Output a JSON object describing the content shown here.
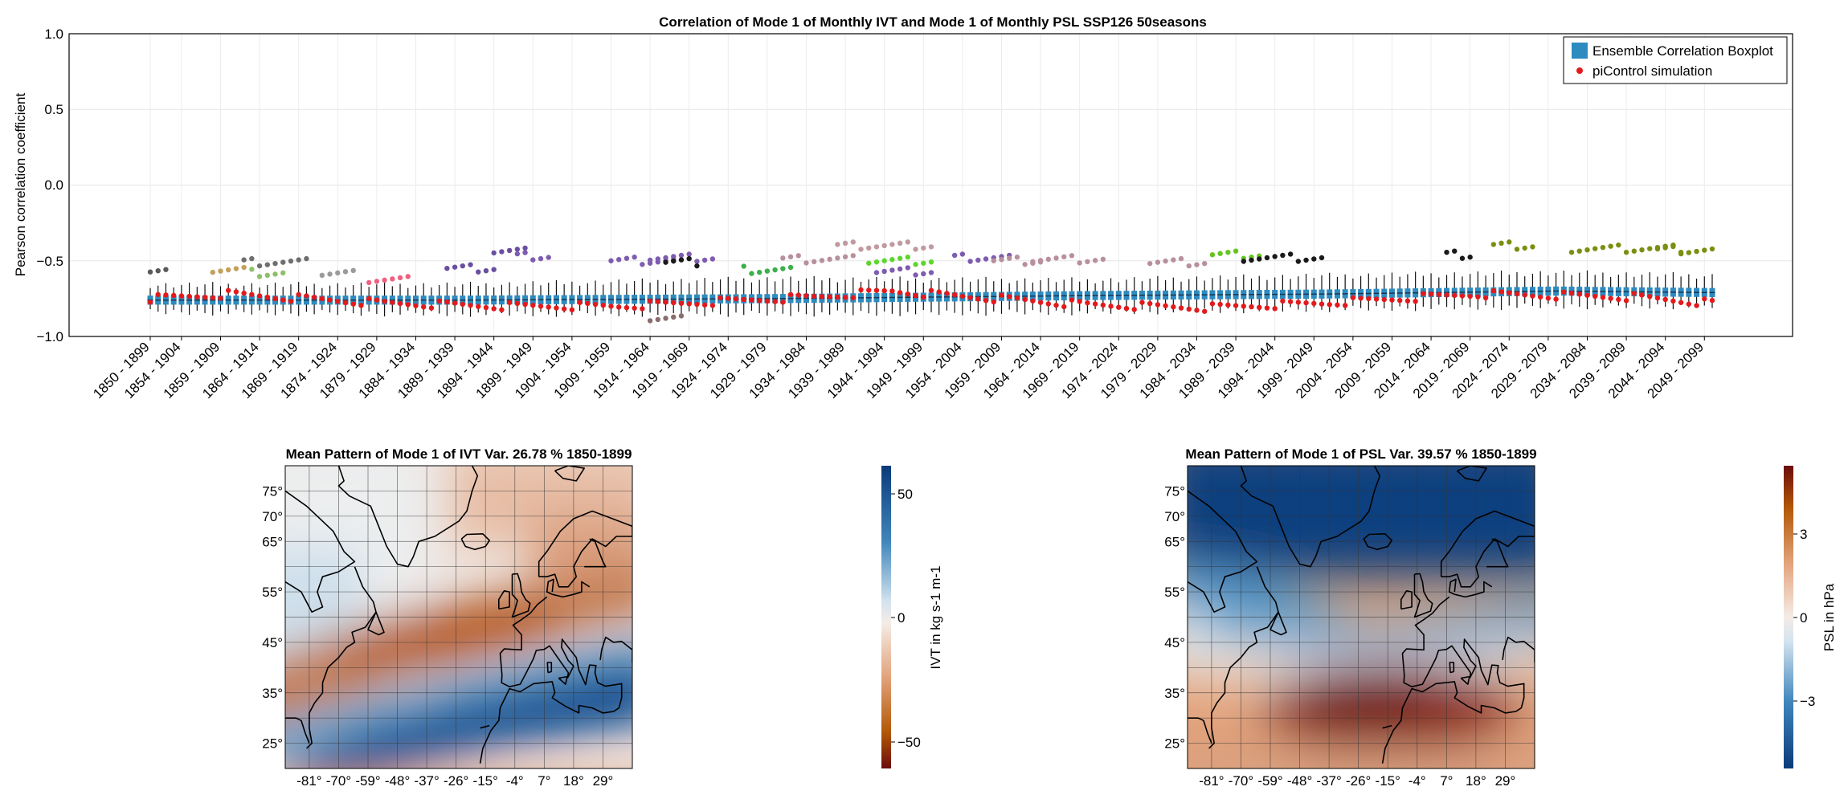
{
  "figure_title": "Correlation of Mode 1 of Monthly IVT and Mode 1 of Monthly PSL SSP126 50seasons",
  "chart_data": [
    {
      "type": "box",
      "title": "Correlation of Mode 1 of Monthly IVT and Mode 1 of Monthly PSL SSP126 50seasons",
      "ylabel": "Pearson correlation coefficient",
      "xlabel": "",
      "ylim": [
        -1.0,
        1.0
      ],
      "yticks": [
        "1.0",
        "0.5",
        "0.0",
        "−0.5",
        "−1.0"
      ],
      "grid": true,
      "legend_position": "top-right",
      "legend": [
        {
          "label": "Ensemble Correlation Boxplot",
          "color": "#2e8bc0",
          "marker": "square"
        },
        {
          "label": "piControl simulation",
          "color": "#e31a1c",
          "marker": "dot"
        }
      ],
      "window_start_year": 1850,
      "window_length_years": 50,
      "n_windows": 201,
      "xtick_labels": [
        "1850 - 1899",
        "1854 - 1904",
        "1859 - 1909",
        "1864 - 1914",
        "1869 - 1919",
        "1874 - 1924",
        "1879 - 1929",
        "1884 - 1934",
        "1889 - 1939",
        "1894 - 1944",
        "1899 - 1949",
        "1904 - 1954",
        "1909 - 1959",
        "1914 - 1964",
        "1919 - 1969",
        "1924 - 1974",
        "1929 - 1979",
        "1934 - 1984",
        "1939 - 1989",
        "1944 - 1994",
        "1949 - 1999",
        "1954 - 2004",
        "1959 - 2009",
        "1964 - 2014",
        "1969 - 2019",
        "1974 - 2024",
        "1979 - 2029",
        "1984 - 2034",
        "1989 - 2039",
        "1994 - 2044",
        "1999 - 2049",
        "2004 - 2054",
        "2009 - 2059",
        "2014 - 2064",
        "2019 - 2069",
        "2024 - 2074",
        "2029 - 2079",
        "2034 - 2084",
        "2039 - 2089",
        "2044 - 2094",
        "2049 - 2099"
      ],
      "xtick_window_index": [
        0,
        4,
        9,
        14,
        19,
        24,
        29,
        34,
        39,
        44,
        49,
        54,
        59,
        64,
        69,
        74,
        79,
        84,
        89,
        94,
        99,
        104,
        109,
        114,
        119,
        124,
        129,
        134,
        139,
        144,
        149,
        154,
        159,
        164,
        169,
        174,
        179,
        184,
        189,
        194,
        199
      ],
      "series": [
        {
          "name": "Ensemble Correlation Boxplot",
          "stat": "median",
          "anchors": [
            [
              0,
              -0.76
            ],
            [
              40,
              -0.76
            ],
            [
              80,
              -0.75
            ],
            [
              120,
              -0.73
            ],
            [
              150,
              -0.72
            ],
            [
              180,
              -0.7
            ],
            [
              200,
              -0.71
            ]
          ]
        },
        {
          "name": "Ensemble Correlation Boxplot",
          "stat": "q1",
          "anchors": [
            [
              0,
              -0.79
            ],
            [
              40,
              -0.79
            ],
            [
              80,
              -0.78
            ],
            [
              120,
              -0.76
            ],
            [
              150,
              -0.75
            ],
            [
              180,
              -0.73
            ],
            [
              200,
              -0.74
            ]
          ]
        },
        {
          "name": "Ensemble Correlation Boxplot",
          "stat": "q3",
          "anchors": [
            [
              0,
              -0.73
            ],
            [
              40,
              -0.73
            ],
            [
              80,
              -0.72
            ],
            [
              120,
              -0.7
            ],
            [
              150,
              -0.69
            ],
            [
              180,
              -0.67
            ],
            [
              200,
              -0.68
            ]
          ]
        },
        {
          "name": "Ensemble Correlation Boxplot",
          "stat": "whisker_low",
          "anchors": [
            [
              0,
              -0.84
            ],
            [
              40,
              -0.85
            ],
            [
              80,
              -0.85
            ],
            [
              120,
              -0.84
            ],
            [
              150,
              -0.82
            ],
            [
              180,
              -0.8
            ],
            [
              200,
              -0.8
            ]
          ]
        },
        {
          "name": "Ensemble Correlation Boxplot",
          "stat": "whisker_high",
          "anchors": [
            [
              0,
              -0.66
            ],
            [
              40,
              -0.66
            ],
            [
              80,
              -0.62
            ],
            [
              120,
              -0.63
            ],
            [
              150,
              -0.6
            ],
            [
              180,
              -0.58
            ],
            [
              200,
              -0.6
            ]
          ]
        },
        {
          "name": "piControl simulation",
          "anchors": [
            [
              0,
              -0.75
            ],
            [
              10,
              -0.72
            ],
            [
              30,
              -0.78
            ],
            [
              45,
              -0.8
            ],
            [
              60,
              -0.8
            ],
            [
              85,
              -0.74
            ],
            [
              95,
              -0.7
            ],
            [
              100,
              -0.72
            ],
            [
              120,
              -0.79
            ],
            [
              135,
              -0.81
            ],
            [
              150,
              -0.78
            ],
            [
              170,
              -0.72
            ],
            [
              190,
              -0.74
            ],
            [
              200,
              -0.78
            ]
          ]
        }
      ],
      "outlier_groups": [
        {
          "from": 0,
          "to": 2,
          "y": -0.55,
          "color": "#5a5a5a"
        },
        {
          "from": 8,
          "to": 12,
          "y": -0.56,
          "color": "#c3a05c"
        },
        {
          "from": 12,
          "to": 20,
          "y": -0.51,
          "color": "#6f6f6f"
        },
        {
          "from": 13,
          "to": 17,
          "y": -0.58,
          "color": "#8fbf6a"
        },
        {
          "from": 22,
          "to": 26,
          "y": -0.58,
          "color": "#9a9a9a"
        },
        {
          "from": 28,
          "to": 33,
          "y": -0.62,
          "color": "#f06080"
        },
        {
          "from": 38,
          "to": 44,
          "y": -0.55,
          "color": "#6a4fa0"
        },
        {
          "from": 44,
          "to": 48,
          "y": -0.44,
          "color": "#6a4fa0"
        },
        {
          "from": 47,
          "to": 51,
          "y": -0.47,
          "color": "#7e5cb0"
        },
        {
          "from": 59,
          "to": 67,
          "y": -0.5,
          "color": "#7e5cb0"
        },
        {
          "from": 64,
          "to": 72,
          "y": -0.48,
          "color": "#7e5cb0"
        },
        {
          "from": 66,
          "to": 70,
          "y": -0.51,
          "color": "#1a1a1a"
        },
        {
          "from": 64,
          "to": 68,
          "y": -0.88,
          "color": "#8a6d6d"
        },
        {
          "from": 76,
          "to": 82,
          "y": -0.56,
          "color": "#3cb04b"
        },
        {
          "from": 81,
          "to": 90,
          "y": -0.49,
          "color": "#b8909c"
        },
        {
          "from": 88,
          "to": 100,
          "y": -0.4,
          "color": "#c09aa0"
        },
        {
          "from": 92,
          "to": 100,
          "y": -0.5,
          "color": "#5ed62e"
        },
        {
          "from": 93,
          "to": 100,
          "y": -0.57,
          "color": "#7e5cb0"
        },
        {
          "from": 103,
          "to": 110,
          "y": -0.48,
          "color": "#7e5cb0"
        },
        {
          "from": 108,
          "to": 114,
          "y": -0.5,
          "color": "#b8909c"
        },
        {
          "from": 113,
          "to": 122,
          "y": -0.49,
          "color": "#b8909c"
        },
        {
          "from": 128,
          "to": 135,
          "y": -0.51,
          "color": "#b8909c"
        },
        {
          "from": 136,
          "to": 142,
          "y": -0.46,
          "color": "#66c41f"
        },
        {
          "from": 140,
          "to": 150,
          "y": -0.48,
          "color": "#1a1a1a"
        },
        {
          "from": 166,
          "to": 169,
          "y": -0.46,
          "color": "#1a1a1a"
        },
        {
          "from": 172,
          "to": 177,
          "y": -0.4,
          "color": "#7a8f10"
        },
        {
          "from": 182,
          "to": 196,
          "y": -0.42,
          "color": "#7a8f10"
        },
        {
          "from": 193,
          "to": 200,
          "y": -0.43,
          "color": "#7a8f10"
        }
      ]
    },
    {
      "type": "heatmap",
      "title": "Mean Pattern of Mode 1 of IVT Var. 26.78 % 1850-1899",
      "colorbar_label": "IVT in kg s-1 m-1",
      "colorbar_ticks": [
        "50",
        "0",
        "−50"
      ],
      "colorbar_range": [
        -60,
        60
      ],
      "colormap": [
        "#6b0c0b",
        "#b35806",
        "#e2a27a",
        "#f5ece6",
        "#d4e3ef",
        "#3f86bc",
        "#0a3a7a"
      ],
      "xtick_labels": [
        "-81°",
        "-70°",
        "-59°",
        "-48°",
        "-37°",
        "-26°",
        "-15°",
        "-4°",
        "7°",
        "18°",
        "29°"
      ],
      "ytick_labels": [
        "75°",
        "70°",
        "65°",
        "55°",
        "45°",
        "35°",
        "25°"
      ],
      "lon_range": [
        -90,
        40
      ],
      "lat_range": [
        20,
        80
      ]
    },
    {
      "type": "heatmap",
      "title": "Mean Pattern of Mode 1 of PSL Var. 39.57 % 1850-1899",
      "colorbar_label": "PSL in hPa",
      "colorbar_ticks": [
        "3",
        "0",
        "−3"
      ],
      "colorbar_range": [
        -5,
        5
      ],
      "colormap": [
        "#6b0c0b",
        "#b35806",
        "#e2a27a",
        "#f5ece6",
        "#d4e3ef",
        "#3f86bc",
        "#0a3a7a"
      ],
      "xtick_labels": [
        "-81°",
        "-70°",
        "-59°",
        "-48°",
        "-37°",
        "-26°",
        "-15°",
        "-4°",
        "7°",
        "18°",
        "29°"
      ],
      "ytick_labels": [
        "75°",
        "70°",
        "65°",
        "55°",
        "45°",
        "35°",
        "25°"
      ],
      "lon_range": [
        -90,
        40
      ],
      "lat_range": [
        20,
        80
      ]
    }
  ]
}
